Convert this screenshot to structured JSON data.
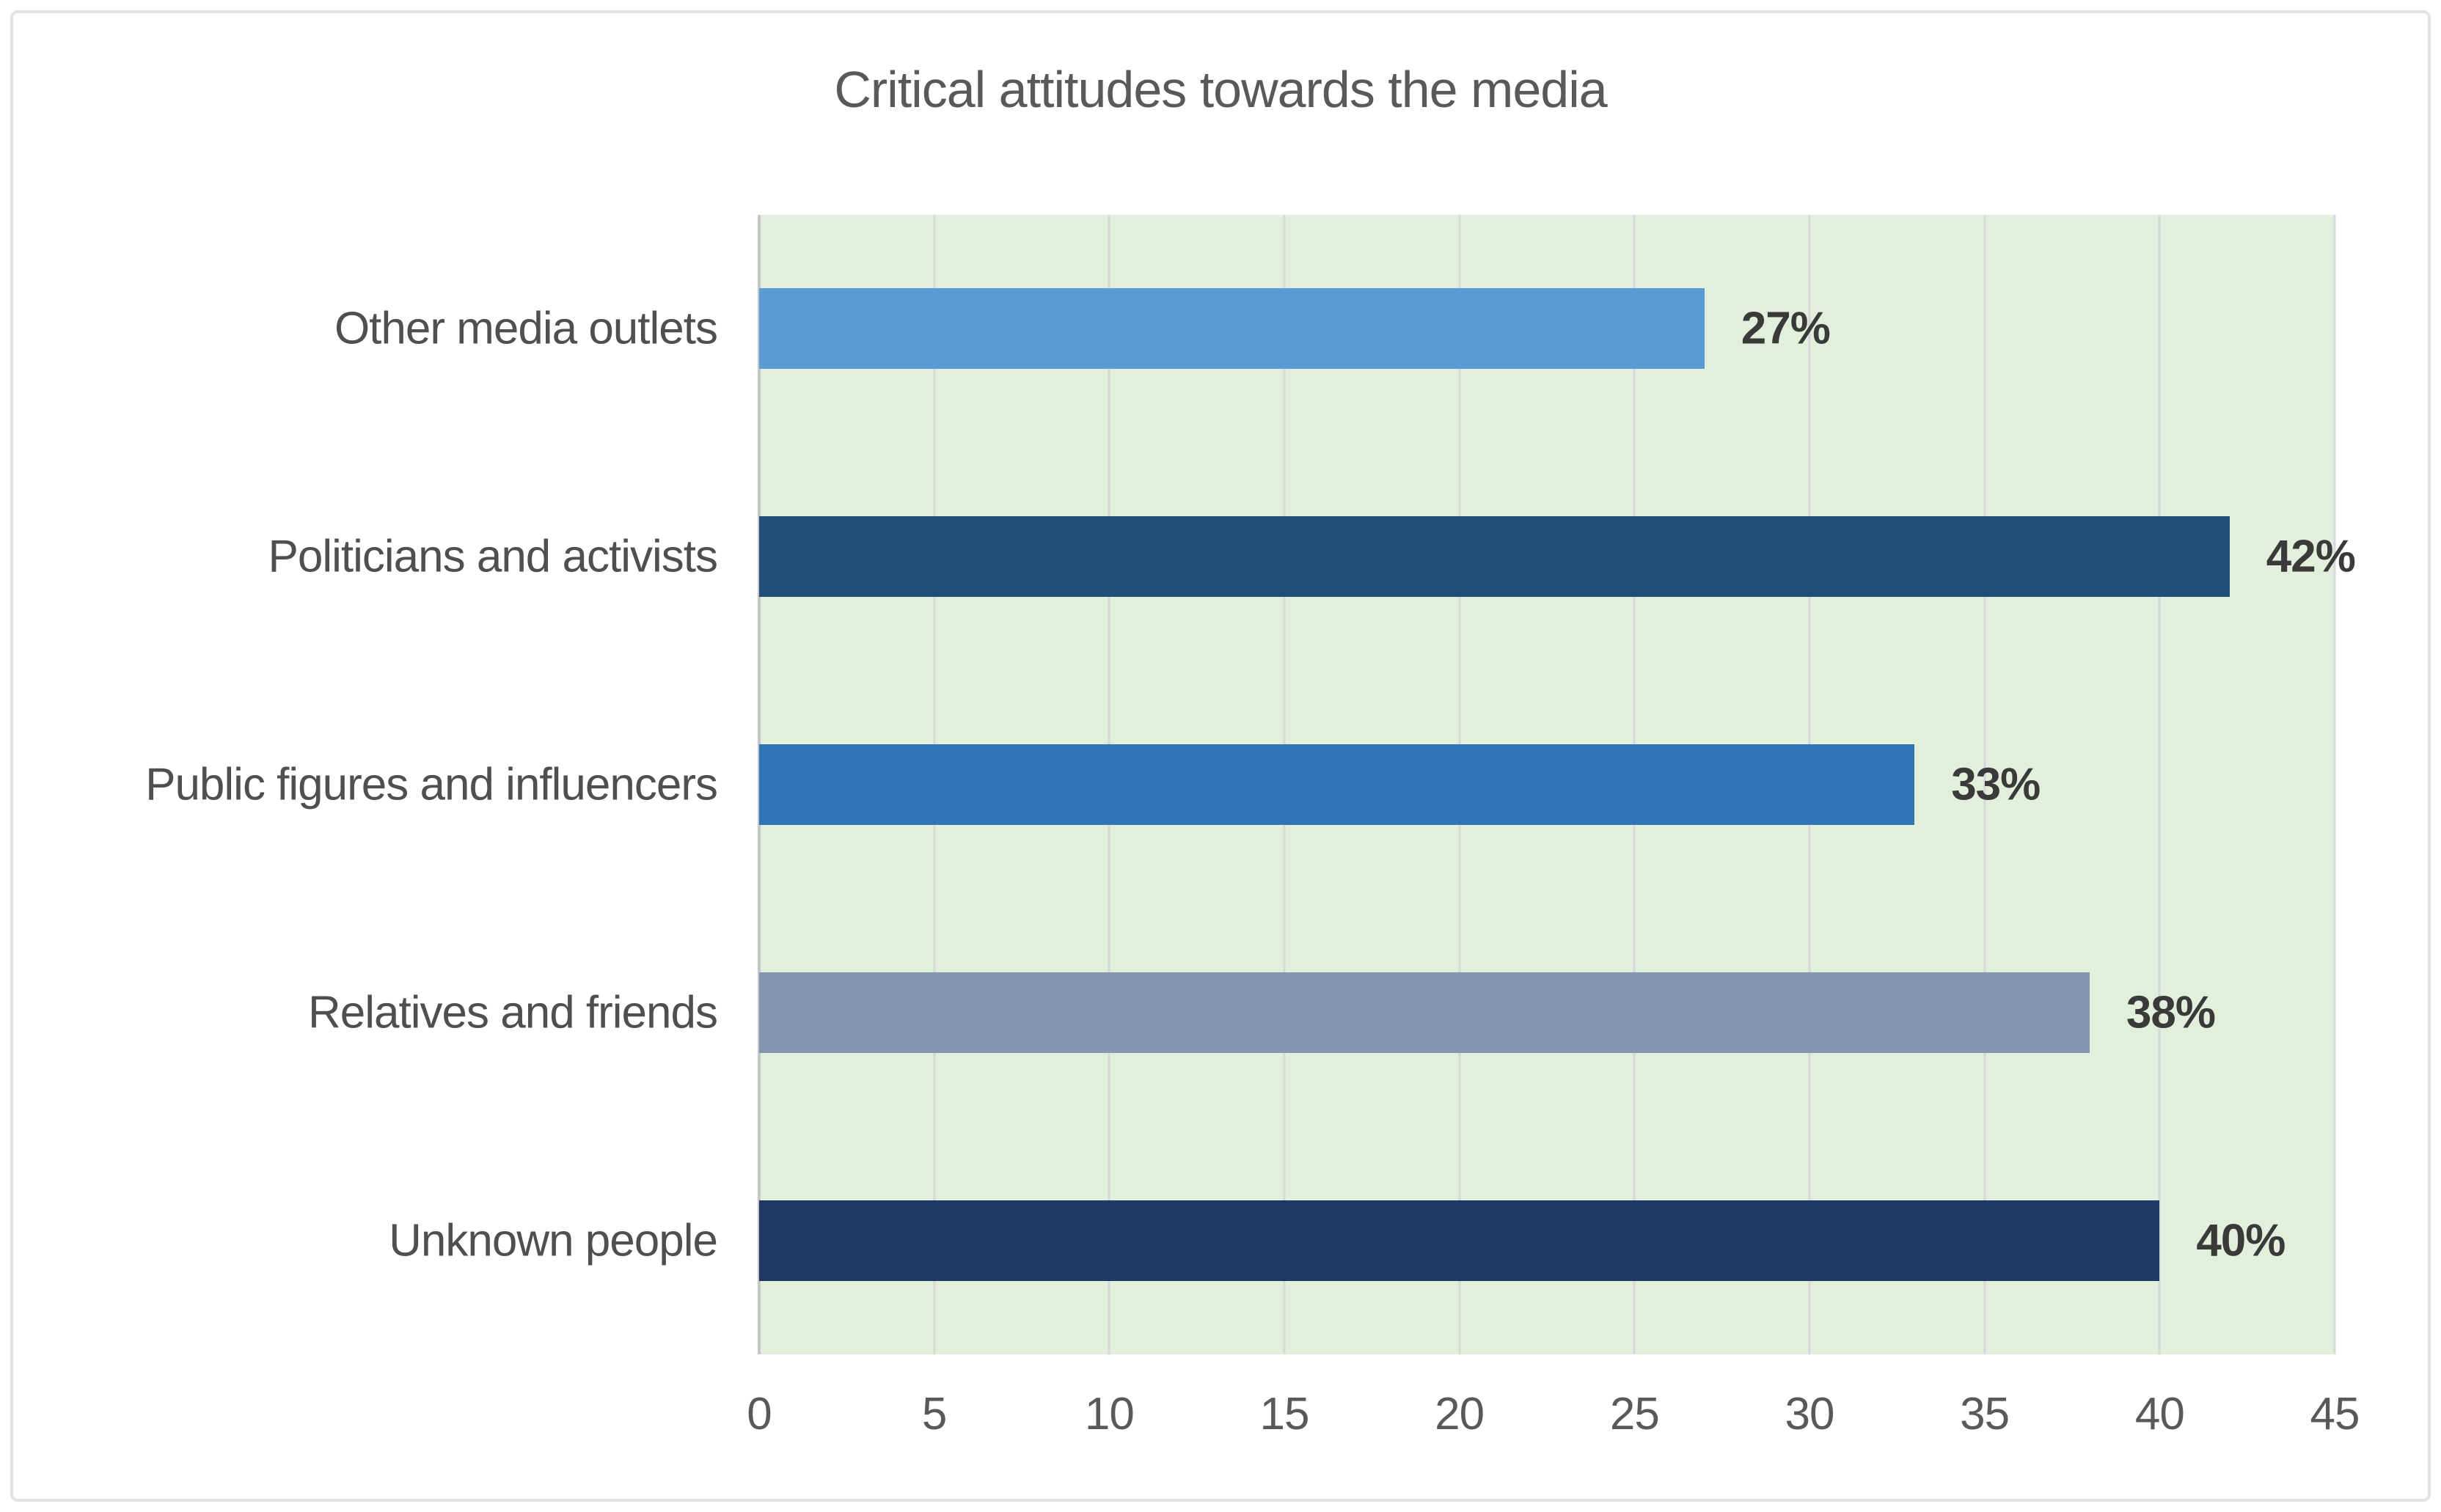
{
  "frame": {
    "background": "#ffffff",
    "border_color": "#e3e3e3"
  },
  "chart_data": {
    "type": "bar",
    "orientation": "horizontal",
    "title": "Critical attitudes towards the media",
    "categories": [
      "Other media outlets",
      "Politicians and activists",
      "Public figures and influencers",
      "Relatives and friends",
      "Unknown people"
    ],
    "values": [
      27,
      42,
      33,
      38,
      40
    ],
    "value_labels": [
      "27%",
      "42%",
      "33%",
      "38%",
      "40%"
    ],
    "bar_colors": [
      "#5B9BD5",
      "#1F4E79",
      "#2E75B6",
      "#8496B0",
      "#203864"
    ],
    "xlabel": "",
    "ylabel": "",
    "xlim": [
      0,
      45
    ],
    "x_ticks": [
      "0",
      "5",
      "10",
      "15",
      "20",
      "25",
      "30",
      "35",
      "40",
      "45"
    ],
    "grid": "vertical",
    "legend_position": "none",
    "plot_background": "#E2EFDA",
    "gridline_color": "#D7D7DD",
    "axis_line_color": "#C6C6CC",
    "title_color": "#595959",
    "category_label_color": "#4F4F4F",
    "tick_label_color": "#595959",
    "value_label_color": "#3A3A3A"
  }
}
